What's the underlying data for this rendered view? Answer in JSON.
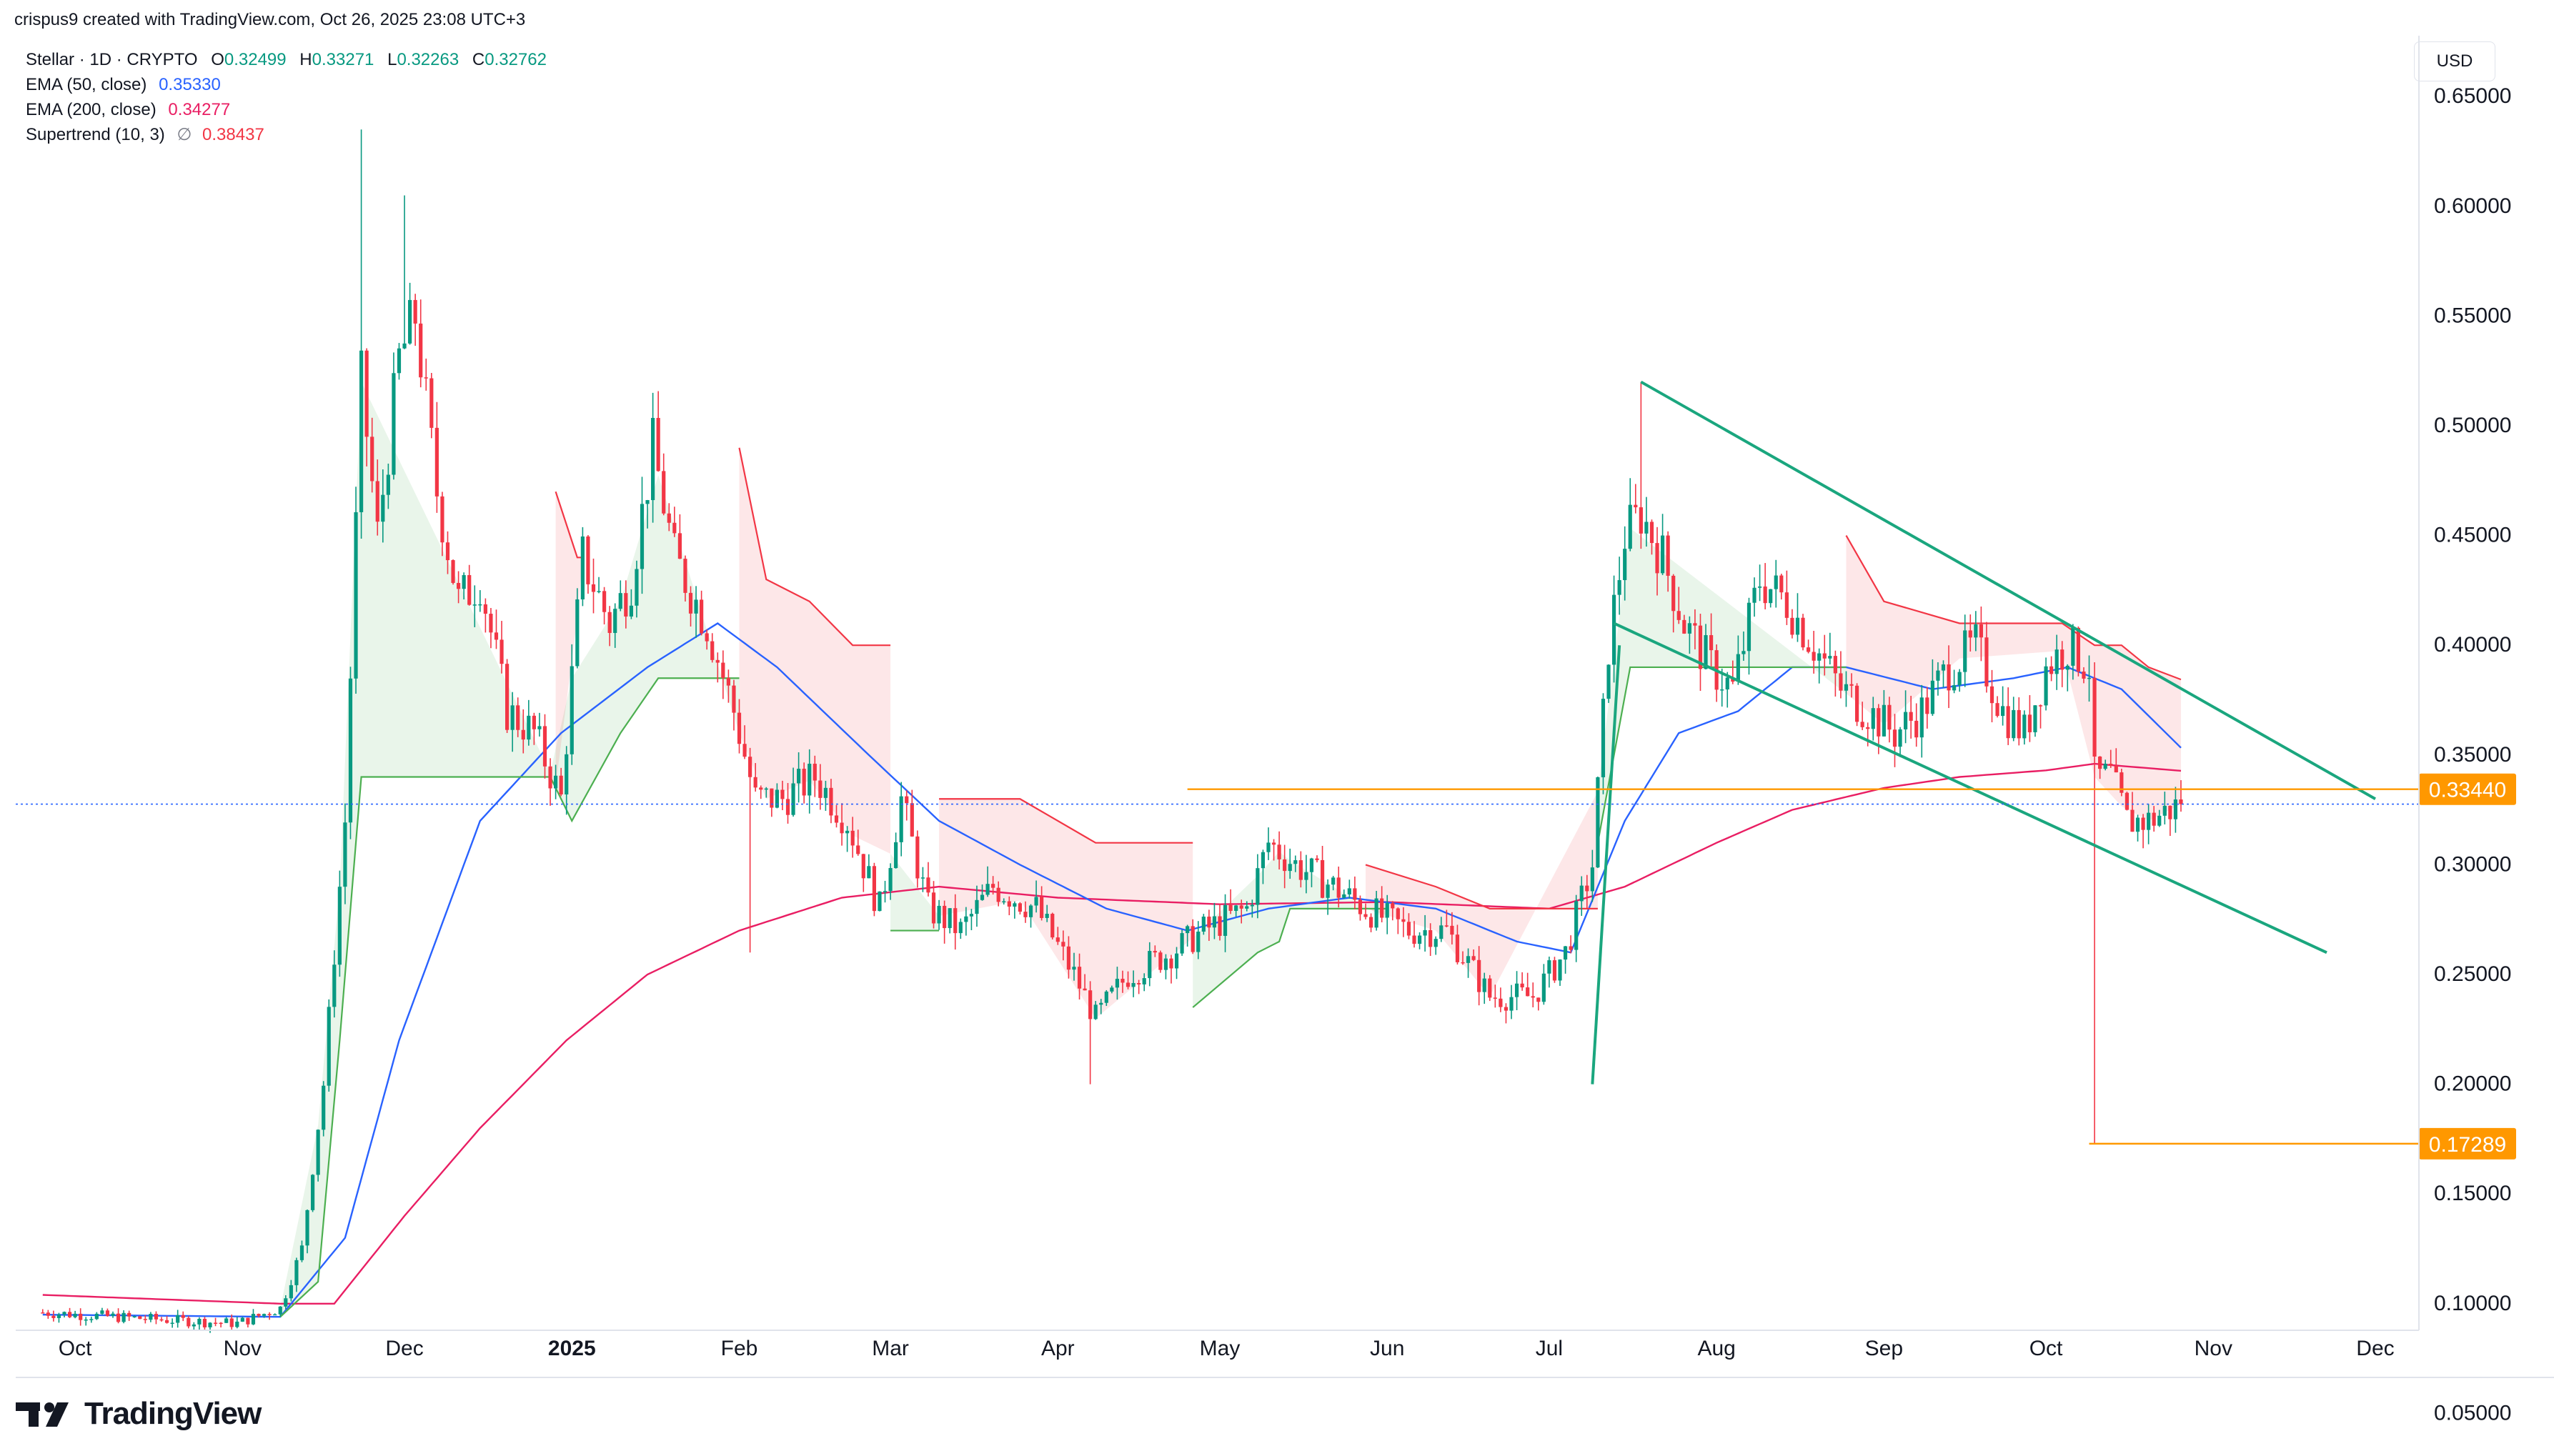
{
  "header": {
    "credit": "crispus9 created with TradingView.com, Oct 26, 2025 23:08 UTC+3"
  },
  "currency_button": "USD",
  "legend": {
    "symbol": "Stellar · 1D · CRYPTO",
    "ohlc": [
      {
        "k": "O",
        "v": "0.32499"
      },
      {
        "k": "H",
        "v": "0.33271"
      },
      {
        "k": "L",
        "v": "0.32263"
      },
      {
        "k": "C",
        "v": "0.32762"
      }
    ],
    "ema50_label": "EMA (50, close)",
    "ema50_value": "0.35330",
    "ema200_label": "EMA (200, close)",
    "ema200_value": "0.34277",
    "supertrend_label": "Supertrend (10, 3)",
    "supertrend_sep": "∅",
    "supertrend_value": "0.38437"
  },
  "brand": {
    "name": "TradingView"
  },
  "colors": {
    "up": "#089981",
    "down": "#f23645",
    "ema50": "#2962ff",
    "ema200": "#e91e63",
    "trend_lines": "#1aa67e",
    "horizontal": "#ff9800",
    "st_up": "#4caf50",
    "st_down": "#f23645"
  },
  "chart_data": {
    "type": "candlestick",
    "symbol": "Stellar",
    "interval": "1D",
    "ylim": [
      0.0,
      0.68
    ],
    "y_ticks": [
      "0.65000",
      "0.60000",
      "0.55000",
      "0.50000",
      "0.45000",
      "0.40000",
      "0.35000",
      "0.30000",
      "0.25000",
      "0.20000",
      "0.15000",
      "0.10000",
      "0.05000"
    ],
    "x_ticks": [
      "Oct",
      "Nov",
      "Dec",
      "2025",
      "Feb",
      "Mar",
      "Apr",
      "May",
      "Jun",
      "Jul",
      "Aug",
      "Sep",
      "Oct",
      "Nov",
      "Dec"
    ],
    "price_labels": [
      {
        "text": "0.33440",
        "value": 0.3344
      },
      {
        "text": "0.17289",
        "value": 0.17289
      }
    ],
    "last_price": 0.32762,
    "ohlc_path": [
      [
        "2024-09-25",
        0.096
      ],
      [
        "2024-10-15",
        0.093
      ],
      [
        "2024-10-31",
        0.091
      ],
      [
        "2024-11-08",
        0.098
      ],
      [
        "2024-11-12",
        0.125
      ],
      [
        "2024-11-16",
        0.2
      ],
      [
        "2024-11-20",
        0.32
      ],
      [
        "2024-11-23",
        0.52
      ],
      [
        "2024-11-26",
        0.45
      ],
      [
        "2024-11-30",
        0.53
      ],
      [
        "2024-12-03",
        0.55
      ],
      [
        "2024-12-07",
        0.47
      ],
      [
        "2024-12-11",
        0.42
      ],
      [
        "2024-12-15",
        0.43
      ],
      [
        "2024-12-20",
        0.37
      ],
      [
        "2024-12-25",
        0.36
      ],
      [
        "2024-12-30",
        0.33
      ],
      [
        "2025-01-03",
        0.44
      ],
      [
        "2025-01-08",
        0.41
      ],
      [
        "2025-01-12",
        0.43
      ],
      [
        "2025-01-16",
        0.49
      ],
      [
        "2025-01-20",
        0.44
      ],
      [
        "2025-01-26",
        0.41
      ],
      [
        "2025-01-31",
        0.37
      ],
      [
        "2025-02-04",
        0.33
      ],
      [
        "2025-02-09",
        0.33
      ],
      [
        "2025-02-15",
        0.34
      ],
      [
        "2025-02-21",
        0.32
      ],
      [
        "2025-02-27",
        0.28
      ],
      [
        "2025-03-03",
        0.33
      ],
      [
        "2025-03-08",
        0.28
      ],
      [
        "2025-03-14",
        0.27
      ],
      [
        "2025-03-20",
        0.29
      ],
      [
        "2025-03-28",
        0.28
      ],
      [
        "2025-04-04",
        0.25
      ],
      [
        "2025-04-08",
        0.23
      ],
      [
        "2025-04-14",
        0.25
      ],
      [
        "2025-04-22",
        0.26
      ],
      [
        "2025-04-28",
        0.27
      ],
      [
        "2025-05-06",
        0.28
      ],
      [
        "2025-05-10",
        0.31
      ],
      [
        "2025-05-15",
        0.3
      ],
      [
        "2025-05-22",
        0.29
      ],
      [
        "2025-05-28",
        0.28
      ],
      [
        "2025-06-05",
        0.27
      ],
      [
        "2025-06-12",
        0.27
      ],
      [
        "2025-06-20",
        0.24
      ],
      [
        "2025-06-28",
        0.24
      ],
      [
        "2025-07-04",
        0.26
      ],
      [
        "2025-07-09",
        0.3
      ],
      [
        "2025-07-12",
        0.4
      ],
      [
        "2025-07-15",
        0.45
      ],
      [
        "2025-07-18",
        0.46
      ],
      [
        "2025-07-22",
        0.44
      ],
      [
        "2025-07-26",
        0.41
      ],
      [
        "2025-07-31",
        0.39
      ],
      [
        "2025-08-04",
        0.38
      ],
      [
        "2025-08-09",
        0.43
      ],
      [
        "2025-08-14",
        0.42
      ],
      [
        "2025-08-19",
        0.4
      ],
      [
        "2025-08-24",
        0.38
      ],
      [
        "2025-08-29",
        0.37
      ],
      [
        "2025-09-03",
        0.36
      ],
      [
        "2025-09-08",
        0.37
      ],
      [
        "2025-09-13",
        0.39
      ],
      [
        "2025-09-18",
        0.4
      ],
      [
        "2025-09-23",
        0.37
      ],
      [
        "2025-09-27",
        0.36
      ],
      [
        "2025-10-01",
        0.39
      ],
      [
        "2025-10-05",
        0.4
      ],
      [
        "2025-10-09",
        0.39
      ],
      [
        "2025-10-10",
        0.34
      ],
      [
        "2025-10-13",
        0.34
      ],
      [
        "2025-10-16",
        0.32
      ],
      [
        "2025-10-20",
        0.32
      ],
      [
        "2025-10-26",
        0.3276
      ]
    ],
    "ema50_path": [
      [
        "2024-09-25",
        0.095
      ],
      [
        "2024-11-08",
        0.094
      ],
      [
        "2024-11-20",
        0.13
      ],
      [
        "2024-11-30",
        0.22
      ],
      [
        "2024-12-15",
        0.32
      ],
      [
        "2024-12-30",
        0.36
      ],
      [
        "2025-01-15",
        0.39
      ],
      [
        "2025-01-28",
        0.41
      ],
      [
        "2025-02-08",
        0.39
      ],
      [
        "2025-02-25",
        0.35
      ],
      [
        "2025-03-10",
        0.32
      ],
      [
        "2025-03-25",
        0.3
      ],
      [
        "2025-04-10",
        0.28
      ],
      [
        "2025-04-25",
        0.27
      ],
      [
        "2025-05-10",
        0.28
      ],
      [
        "2025-05-25",
        0.285
      ],
      [
        "2025-06-10",
        0.28
      ],
      [
        "2025-06-25",
        0.265
      ],
      [
        "2025-07-05",
        0.26
      ],
      [
        "2025-07-15",
        0.32
      ],
      [
        "2025-07-25",
        0.36
      ],
      [
        "2025-08-05",
        0.37
      ],
      [
        "2025-08-15",
        0.39
      ],
      [
        "2025-08-25",
        0.39
      ],
      [
        "2025-09-10",
        0.38
      ],
      [
        "2025-09-25",
        0.385
      ],
      [
        "2025-10-05",
        0.39
      ],
      [
        "2025-10-15",
        0.38
      ],
      [
        "2025-10-26",
        0.3533
      ]
    ],
    "ema200_path": [
      [
        "2024-09-25",
        0.104
      ],
      [
        "2024-11-08",
        0.1
      ],
      [
        "2024-11-18",
        0.1
      ],
      [
        "2024-12-01",
        0.14
      ],
      [
        "2024-12-15",
        0.18
      ],
      [
        "2024-12-31",
        0.22
      ],
      [
        "2025-01-15",
        0.25
      ],
      [
        "2025-02-01",
        0.27
      ],
      [
        "2025-02-20",
        0.285
      ],
      [
        "2025-03-10",
        0.29
      ],
      [
        "2025-04-01",
        0.285
      ],
      [
        "2025-05-01",
        0.282
      ],
      [
        "2025-06-01",
        0.283
      ],
      [
        "2025-07-01",
        0.28
      ],
      [
        "2025-07-15",
        0.29
      ],
      [
        "2025-08-01",
        0.31
      ],
      [
        "2025-08-15",
        0.325
      ],
      [
        "2025-09-01",
        0.335
      ],
      [
        "2025-09-15",
        0.34
      ],
      [
        "2025-10-01",
        0.343
      ],
      [
        "2025-10-10",
        0.346
      ],
      [
        "2025-10-26",
        0.3428
      ]
    ],
    "supertrend_up": [
      [
        [
          "2024-11-08",
          0.094
        ],
        [
          "2024-11-15",
          0.11
        ],
        [
          "2024-11-19",
          0.22
        ],
        [
          "2024-11-23",
          0.34
        ],
        [
          "2024-12-28",
          0.34
        ],
        [
          "2025-01-01",
          0.32
        ],
        [
          "2025-01-10",
          0.36
        ],
        [
          "2025-01-17",
          0.385
        ],
        [
          "2025-02-01",
          0.385
        ]
      ],
      [
        [
          "2025-03-01",
          0.27
        ],
        [
          "2025-03-10",
          0.27
        ]
      ],
      [
        [
          "2025-04-26",
          0.235
        ],
        [
          "2025-05-08",
          0.26
        ],
        [
          "2025-05-12",
          0.265
        ],
        [
          "2025-05-14",
          0.28
        ],
        [
          "2025-06-01",
          0.28
        ]
      ],
      [
        [
          "2025-07-10",
          0.31
        ],
        [
          "2025-07-16",
          0.39
        ],
        [
          "2025-08-25",
          0.39
        ]
      ]
    ],
    "supertrend_down": [
      [
        [
          "2024-12-29",
          0.47
        ],
        [
          "2025-01-02",
          0.44
        ],
        [
          "2025-01-03",
          0.44
        ]
      ],
      [
        [
          "2025-02-01",
          0.49
        ],
        [
          "2025-02-06",
          0.43
        ],
        [
          "2025-02-14",
          0.42
        ],
        [
          "2025-02-22",
          0.4
        ],
        [
          "2025-03-01",
          0.4
        ]
      ],
      [
        [
          "2025-03-10",
          0.33
        ],
        [
          "2025-03-25",
          0.33
        ],
        [
          "2025-04-08",
          0.31
        ],
        [
          "2025-04-26",
          0.31
        ]
      ],
      [
        [
          "2025-05-28",
          0.3
        ],
        [
          "2025-06-10",
          0.29
        ],
        [
          "2025-06-20",
          0.28
        ],
        [
          "2025-07-10",
          0.28
        ]
      ],
      [
        [
          "2025-08-25",
          0.45
        ],
        [
          "2025-09-01",
          0.42
        ],
        [
          "2025-09-15",
          0.41
        ],
        [
          "2025-10-04",
          0.41
        ],
        [
          "2025-10-10",
          0.4
        ],
        [
          "2025-10-15",
          0.4
        ],
        [
          "2025-10-20",
          0.39
        ],
        [
          "2025-10-26",
          0.3844
        ]
      ]
    ],
    "drawings": {
      "wedge_upper": [
        [
          "2025-07-18",
          0.52
        ],
        [
          "2025-12-01",
          0.33
        ]
      ],
      "wedge_lower": [
        [
          "2025-07-13",
          0.41
        ],
        [
          "2025-11-22",
          0.26
        ]
      ],
      "breakout_line": [
        [
          "2025-07-09",
          0.2
        ],
        [
          "2025-07-14",
          0.4
        ]
      ],
      "resistance_start": "2025-04-25",
      "low_line_start": "2025-10-09"
    }
  }
}
